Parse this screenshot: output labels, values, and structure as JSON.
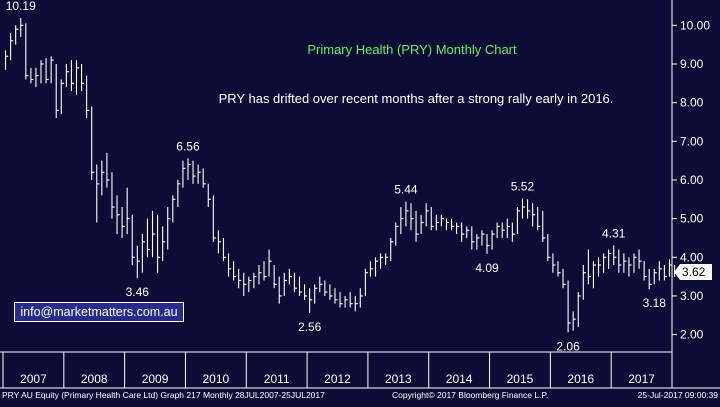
{
  "chart_data": {
    "type": "ohlc-monthly",
    "title": "Primary Health (PRY) Monthly Chart",
    "annotation": "PRY has drifted over recent months after a strong rally early in 2016.",
    "years": [
      "2007",
      "2008",
      "2009",
      "2010",
      "2011",
      "2012",
      "2013",
      "2014",
      "2015",
      "2016",
      "2017"
    ],
    "ylim": [
      1.55,
      10.5
    ],
    "yticks": [
      2.0,
      3.0,
      4.0,
      5.0,
      6.0,
      7.0,
      8.0,
      9.0,
      10.0
    ],
    "ytick_labels": [
      "2.00",
      "3.00",
      "4.00",
      "5.00",
      "6.00",
      "7.00",
      "8.00",
      "9.00",
      "10.00"
    ],
    "last_price": 3.62,
    "last_price_label": "3.62",
    "start": {
      "year": 2007,
      "month": 1
    },
    "series": [
      {
        "high": 9.35,
        "low": 8.85,
        "close": 9.2
      },
      {
        "high": 9.8,
        "low": 9.1,
        "close": 9.6
      },
      {
        "high": 10.0,
        "low": 9.5,
        "close": 9.9
      },
      {
        "high": 10.19,
        "low": 9.7,
        "close": 10.0
      },
      {
        "high": 10.05,
        "low": 8.6,
        "close": 8.7
      },
      {
        "high": 8.9,
        "low": 8.5,
        "close": 8.6
      },
      {
        "high": 8.9,
        "low": 8.4,
        "close": 8.7
      },
      {
        "high": 9.1,
        "low": 8.5,
        "close": 9.0
      },
      {
        "high": 9.15,
        "low": 8.5,
        "close": 8.6
      },
      {
        "high": 9.2,
        "low": 8.5,
        "close": 9.1
      },
      {
        "high": 9.0,
        "low": 7.6,
        "close": 7.8
      },
      {
        "high": 8.6,
        "low": 7.7,
        "close": 8.5
      },
      {
        "high": 9.0,
        "low": 8.4,
        "close": 8.8
      },
      {
        "high": 9.1,
        "low": 8.3,
        "close": 8.5
      },
      {
        "high": 9.1,
        "low": 8.2,
        "close": 8.9
      },
      {
        "high": 9.0,
        "low": 8.3,
        "close": 8.5
      },
      {
        "high": 8.7,
        "low": 7.6,
        "close": 7.8
      },
      {
        "high": 7.9,
        "low": 6.0,
        "close": 6.2
      },
      {
        "high": 6.4,
        "low": 4.9,
        "close": 5.9
      },
      {
        "high": 6.5,
        "low": 5.6,
        "close": 6.2
      },
      {
        "high": 6.7,
        "low": 5.8,
        "close": 6.0
      },
      {
        "high": 6.2,
        "low": 5.0,
        "close": 5.3
      },
      {
        "high": 5.6,
        "low": 4.6,
        "close": 5.1
      },
      {
        "high": 5.3,
        "low": 4.5,
        "close": 4.8
      },
      {
        "high": 5.8,
        "low": 4.6,
        "close": 5.0
      },
      {
        "high": 5.1,
        "low": 3.8,
        "close": 4.0
      },
      {
        "high": 4.3,
        "low": 3.46,
        "close": 3.9
      },
      {
        "high": 4.6,
        "low": 3.6,
        "close": 4.4
      },
      {
        "high": 5.0,
        "low": 4.0,
        "close": 4.2
      },
      {
        "high": 5.2,
        "low": 4.0,
        "close": 4.6
      },
      {
        "high": 5.1,
        "low": 3.6,
        "close": 4.0
      },
      {
        "high": 4.8,
        "low": 3.9,
        "close": 4.4
      },
      {
        "high": 5.3,
        "low": 4.2,
        "close": 5.0
      },
      {
        "high": 5.6,
        "low": 4.9,
        "close": 5.5
      },
      {
        "high": 6.0,
        "low": 5.3,
        "close": 5.9
      },
      {
        "high": 6.5,
        "low": 5.8,
        "close": 6.3
      },
      {
        "high": 6.56,
        "low": 6.0,
        "close": 6.4
      },
      {
        "high": 6.5,
        "low": 5.9,
        "close": 6.1
      },
      {
        "high": 6.4,
        "low": 5.9,
        "close": 6.2
      },
      {
        "high": 6.3,
        "low": 5.8,
        "close": 5.9
      },
      {
        "high": 5.9,
        "low": 5.3,
        "close": 5.5
      },
      {
        "high": 5.6,
        "low": 4.4,
        "close": 4.5
      },
      {
        "high": 4.7,
        "low": 4.1,
        "close": 4.4
      },
      {
        "high": 4.5,
        "low": 3.9,
        "close": 4.0
      },
      {
        "high": 4.1,
        "low": 3.5,
        "close": 3.7
      },
      {
        "high": 3.9,
        "low": 3.4,
        "close": 3.5
      },
      {
        "high": 3.7,
        "low": 3.2,
        "close": 3.4
      },
      {
        "high": 3.6,
        "low": 3.0,
        "close": 3.3
      },
      {
        "high": 3.5,
        "low": 3.1,
        "close": 3.4
      },
      {
        "high": 3.6,
        "low": 3.2,
        "close": 3.5
      },
      {
        "high": 3.8,
        "low": 3.3,
        "close": 3.6
      },
      {
        "high": 3.9,
        "low": 3.4,
        "close": 3.5
      },
      {
        "high": 4.2,
        "low": 3.5,
        "close": 3.9
      },
      {
        "high": 3.8,
        "low": 3.2,
        "close": 3.3
      },
      {
        "high": 3.5,
        "low": 2.8,
        "close": 3.0
      },
      {
        "high": 3.6,
        "low": 3.0,
        "close": 3.4
      },
      {
        "high": 3.7,
        "low": 3.3,
        "close": 3.5
      },
      {
        "high": 3.6,
        "low": 3.1,
        "close": 3.2
      },
      {
        "high": 3.5,
        "low": 3.0,
        "close": 3.1
      },
      {
        "high": 3.3,
        "low": 2.9,
        "close": 3.0
      },
      {
        "high": 3.2,
        "low": 2.56,
        "close": 2.9
      },
      {
        "high": 3.3,
        "low": 2.8,
        "close": 3.2
      },
      {
        "high": 3.5,
        "low": 3.1,
        "close": 3.3
      },
      {
        "high": 3.4,
        "low": 3.0,
        "close": 3.1
      },
      {
        "high": 3.3,
        "low": 2.9,
        "close": 3.0
      },
      {
        "high": 3.2,
        "low": 2.8,
        "close": 2.9
      },
      {
        "high": 3.1,
        "low": 2.7,
        "close": 2.8
      },
      {
        "high": 3.0,
        "low": 2.7,
        "close": 2.9
      },
      {
        "high": 3.1,
        "low": 2.7,
        "close": 2.8
      },
      {
        "high": 3.0,
        "low": 2.6,
        "close": 2.8
      },
      {
        "high": 3.2,
        "low": 2.7,
        "close": 3.0
      },
      {
        "high": 3.7,
        "low": 3.0,
        "close": 3.6
      },
      {
        "high": 3.9,
        "low": 3.5,
        "close": 3.7
      },
      {
        "high": 4.0,
        "low": 3.5,
        "close": 3.9
      },
      {
        "high": 4.1,
        "low": 3.7,
        "close": 4.0
      },
      {
        "high": 4.1,
        "low": 3.8,
        "close": 4.0
      },
      {
        "high": 4.5,
        "low": 3.9,
        "close": 4.4
      },
      {
        "high": 4.9,
        "low": 4.3,
        "close": 4.8
      },
      {
        "high": 5.3,
        "low": 4.6,
        "close": 5.0
      },
      {
        "high": 5.44,
        "low": 4.8,
        "close": 5.2
      },
      {
        "high": 5.4,
        "low": 4.7,
        "close": 5.0
      },
      {
        "high": 5.2,
        "low": 4.4,
        "close": 4.6
      },
      {
        "high": 5.1,
        "low": 4.6,
        "close": 4.9
      },
      {
        "high": 5.4,
        "low": 4.8,
        "close": 5.2
      },
      {
        "high": 5.3,
        "low": 4.7,
        "close": 4.8
      },
      {
        "high": 5.1,
        "low": 4.7,
        "close": 4.9
      },
      {
        "high": 5.1,
        "low": 4.8,
        "close": 5.0
      },
      {
        "high": 5.0,
        "low": 4.7,
        "close": 4.9
      },
      {
        "high": 5.0,
        "low": 4.7,
        "close": 4.8
      },
      {
        "high": 4.9,
        "low": 4.6,
        "close": 4.8
      },
      {
        "high": 4.9,
        "low": 4.4,
        "close": 4.6
      },
      {
        "high": 4.8,
        "low": 4.5,
        "close": 4.7
      },
      {
        "high": 4.8,
        "low": 4.2,
        "close": 4.4
      },
      {
        "high": 4.6,
        "low": 4.2,
        "close": 4.5
      },
      {
        "high": 4.7,
        "low": 4.3,
        "close": 4.6
      },
      {
        "high": 4.6,
        "low": 4.09,
        "close": 4.3
      },
      {
        "high": 4.7,
        "low": 4.2,
        "close": 4.6
      },
      {
        "high": 4.9,
        "low": 4.5,
        "close": 4.8
      },
      {
        "high": 4.9,
        "low": 4.5,
        "close": 4.7
      },
      {
        "high": 5.0,
        "low": 4.5,
        "close": 4.8
      },
      {
        "high": 4.9,
        "low": 4.4,
        "close": 4.6
      },
      {
        "high": 5.3,
        "low": 4.6,
        "close": 5.2
      },
      {
        "high": 5.52,
        "low": 5.0,
        "close": 5.3
      },
      {
        "high": 5.5,
        "low": 5.0,
        "close": 5.2
      },
      {
        "high": 5.4,
        "low": 4.8,
        "close": 5.1
      },
      {
        "high": 5.3,
        "low": 4.7,
        "close": 4.8
      },
      {
        "high": 5.2,
        "low": 4.4,
        "close": 4.5
      },
      {
        "high": 4.6,
        "low": 3.9,
        "close": 4.0
      },
      {
        "high": 4.1,
        "low": 3.6,
        "close": 3.8
      },
      {
        "high": 3.9,
        "low": 3.5,
        "close": 3.6
      },
      {
        "high": 3.7,
        "low": 3.2,
        "close": 3.3
      },
      {
        "high": 3.4,
        "low": 2.06,
        "close": 2.3
      },
      {
        "high": 2.6,
        "low": 2.1,
        "close": 2.4
      },
      {
        "high": 3.1,
        "low": 2.2,
        "close": 3.0
      },
      {
        "high": 3.8,
        "low": 2.9,
        "close": 3.6
      },
      {
        "high": 4.2,
        "low": 3.3,
        "close": 3.5
      },
      {
        "high": 3.9,
        "low": 3.2,
        "close": 3.8
      },
      {
        "high": 4.0,
        "low": 3.5,
        "close": 3.8
      },
      {
        "high": 4.1,
        "low": 3.6,
        "close": 4.0
      },
      {
        "high": 4.2,
        "low": 3.7,
        "close": 4.1
      },
      {
        "high": 4.31,
        "low": 3.8,
        "close": 4.0
      },
      {
        "high": 4.2,
        "low": 3.6,
        "close": 3.8
      },
      {
        "high": 4.1,
        "low": 3.6,
        "close": 3.9
      },
      {
        "high": 4.0,
        "low": 3.5,
        "close": 3.8
      },
      {
        "high": 4.1,
        "low": 3.6,
        "close": 4.0
      },
      {
        "high": 4.2,
        "low": 3.7,
        "close": 3.9
      },
      {
        "high": 3.9,
        "low": 3.4,
        "close": 3.5
      },
      {
        "high": 3.7,
        "low": 3.18,
        "close": 3.3
      },
      {
        "high": 3.7,
        "low": 3.3,
        "close": 3.6
      },
      {
        "high": 3.9,
        "low": 3.4,
        "close": 3.7
      },
      {
        "high": 3.8,
        "low": 3.4,
        "close": 3.5
      },
      {
        "high": 3.95,
        "low": 3.5,
        "close": 3.8
      },
      {
        "high": 3.8,
        "low": 3.5,
        "close": 3.62
      }
    ],
    "annotations": [
      {
        "label": "10.19",
        "value": 10.19,
        "year": 2007,
        "month": 4
      },
      {
        "label": "3.46",
        "value": 3.46,
        "year": 2009,
        "month": 3
      },
      {
        "label": "6.56",
        "value": 6.56,
        "year": 2010,
        "month": 1
      },
      {
        "label": "2.56",
        "value": 2.56,
        "year": 2012,
        "month": 1
      },
      {
        "label": "5.44",
        "value": 5.44,
        "year": 2013,
        "month": 8
      },
      {
        "label": "4.09",
        "value": 4.09,
        "year": 2014,
        "month": 12
      },
      {
        "label": "5.52",
        "value": 5.52,
        "year": 2015,
        "month": 7
      },
      {
        "label": "2.06",
        "value": 2.06,
        "year": 2016,
        "month": 4
      },
      {
        "label": "4.31",
        "value": 4.31,
        "year": 2017,
        "month": 1
      },
      {
        "label": "3.18",
        "value": 3.18,
        "year": 2017,
        "month": 9
      }
    ],
    "grid": false,
    "colors": {
      "background": "#0c0c36",
      "bars": "#ffffff",
      "title": "#66ee66",
      "text": "#ffffff",
      "price_tag": "#ffffff",
      "email_box": "#2a2a8a"
    }
  },
  "email_label": "info@marketmatters.com.au",
  "footer": {
    "left": "PRY AU Equity (Primary Health Care Ltd) Graph 217  Monthly 28JUL2007-25JUL2017",
    "center": "Copyright© 2017 Bloomberg Finance L.P.",
    "right": "25-Jul-2017 09:00:39"
  }
}
